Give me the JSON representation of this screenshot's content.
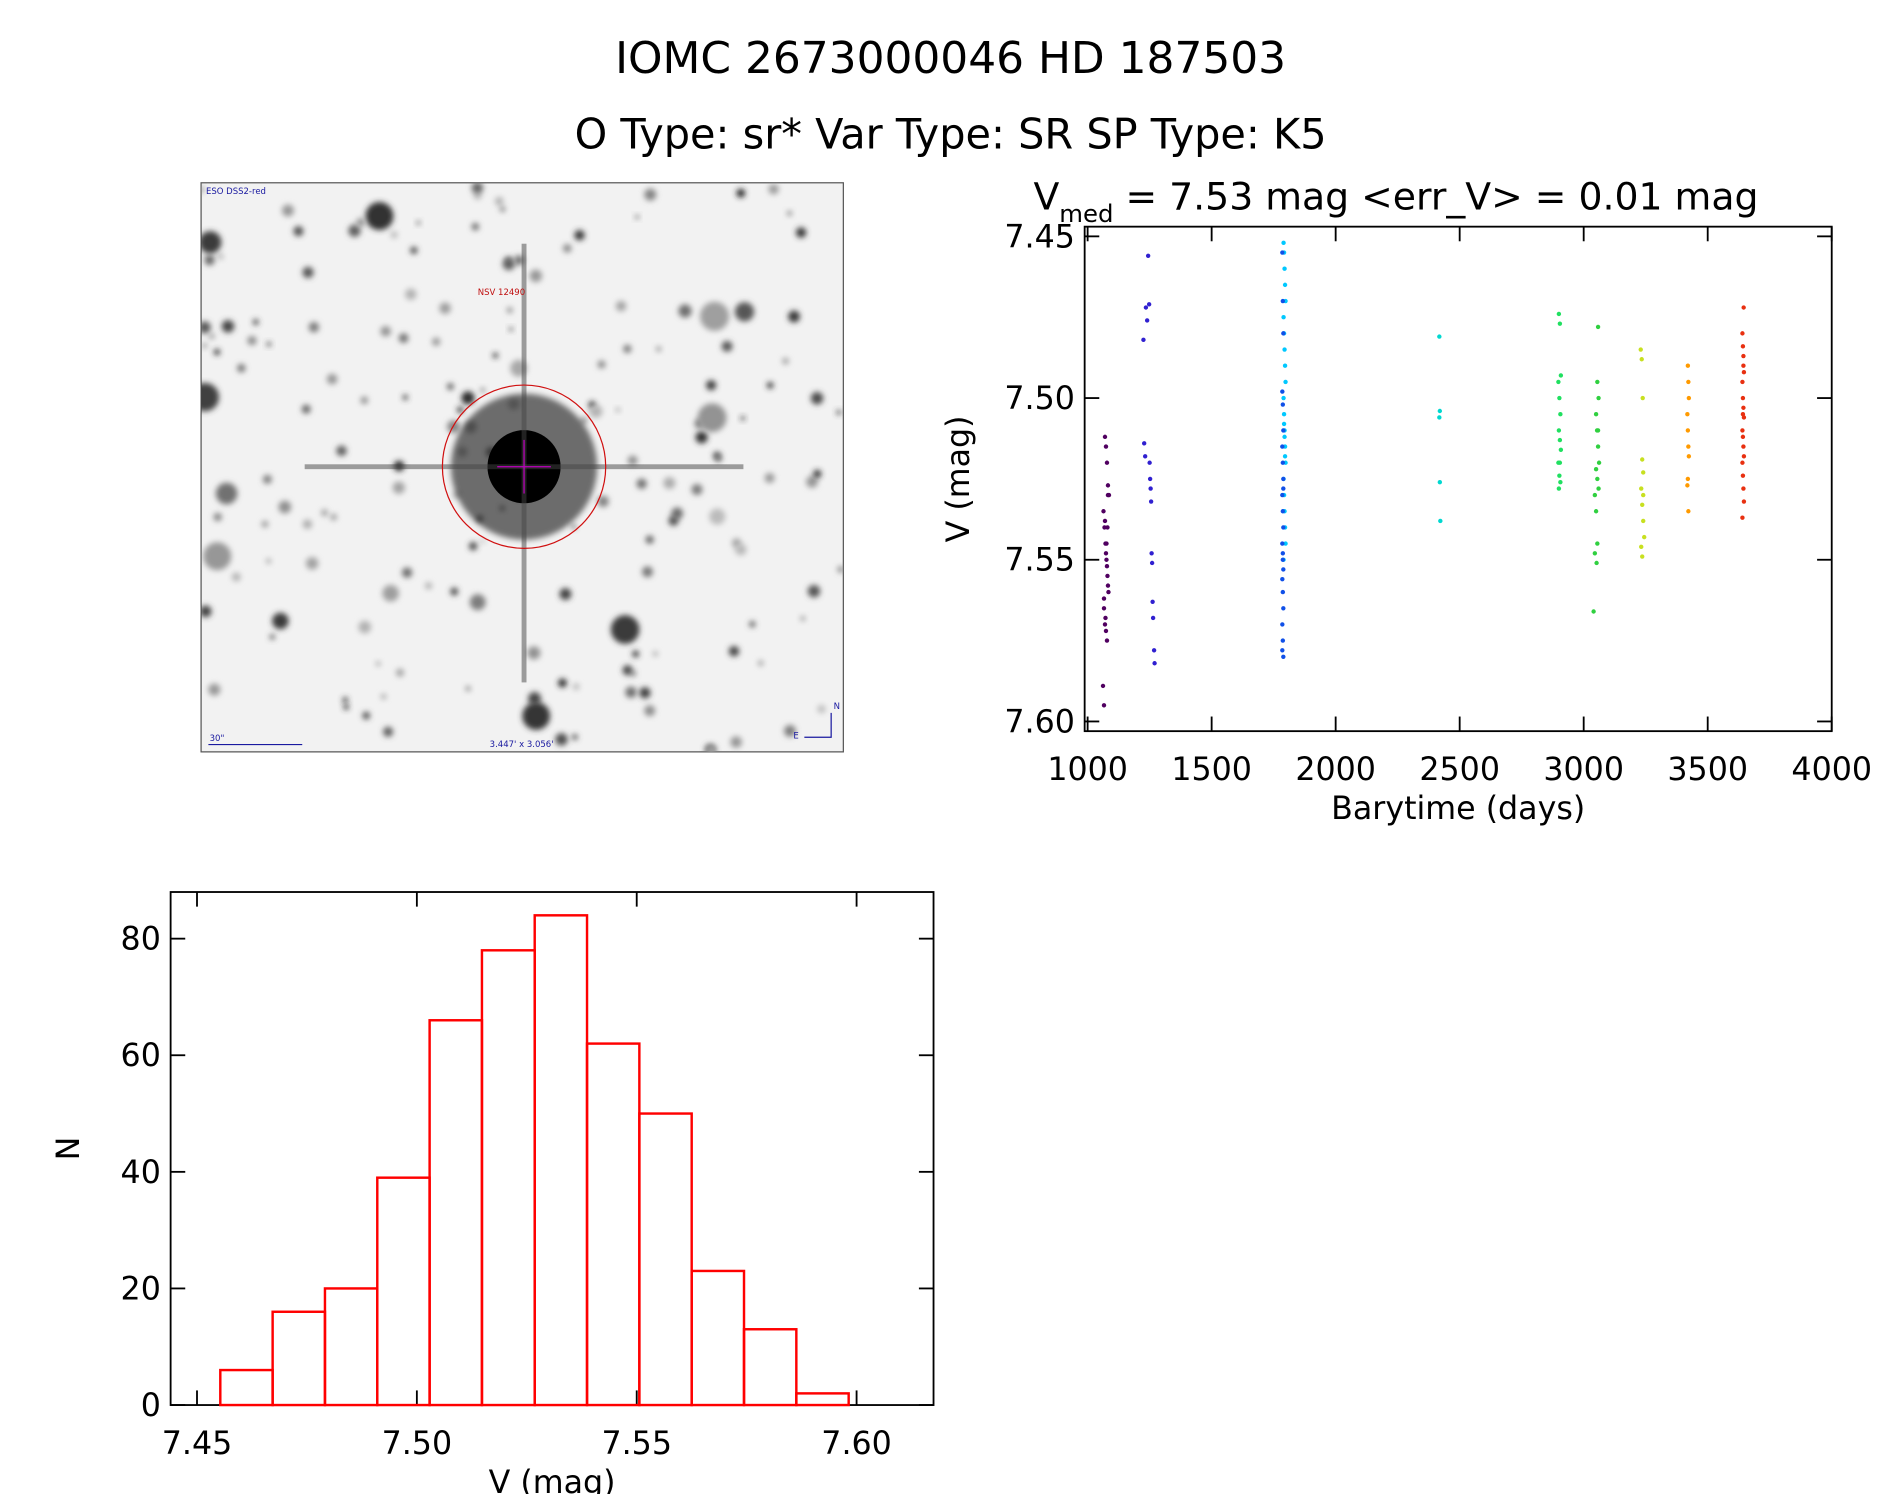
{
  "title": "IOMC 2673000046   HD 187503",
  "subtitle": "O Type: sr*  Var Type: SR  SP Type: K5",
  "finder": {
    "survey": "ESO DSS2-red",
    "target": "NSV 12490",
    "scale": "30\"",
    "size": "3.447' x 3.056'",
    "east": "E",
    "north": "N"
  },
  "chart_data": [
    {
      "type": "scatter",
      "title": "V",
      "title_subscript": "med",
      "title_rest": " = 7.53 mag <err_V> = 0.01 mag",
      "xlabel": "Barytime (days)",
      "ylabel": "V (mag)",
      "xlim": [
        988,
        4000
      ],
      "xticks": [
        1000,
        1500,
        2000,
        2500,
        3000,
        3500,
        4000
      ],
      "ylim": [
        7.603,
        7.447
      ],
      "yticks": [
        7.45,
        {
          "value": 7.5,
          "label": "7.50"
        },
        7.55,
        {
          "value": 7.6,
          "label": "7.60"
        }
      ],
      "grid": false,
      "series": [
        {
          "color": "#500060",
          "x": [
            1062,
            1066,
            1070,
            1074,
            1078,
            1082,
            1086,
            1064,
            1068,
            1072,
            1076,
            1080,
            1084,
            1066,
            1070,
            1074,
            1078,
            1082,
            1070,
            1074,
            1078,
            1082,
            1066,
            1072,
            1076,
            1080
          ],
          "values": [
            7.589,
            7.595,
            7.512,
            7.515,
            7.52,
            7.527,
            7.53,
            7.535,
            7.54,
            7.545,
            7.55,
            7.555,
            7.56,
            7.565,
            7.57,
            7.572,
            7.575,
            7.53,
            7.538,
            7.548,
            7.552,
            7.558,
            7.562,
            7.568,
            7.545,
            7.54
          ]
        },
        {
          "color": "#3020d0",
          "x": [
            1225,
            1235,
            1248,
            1228,
            1232,
            1250,
            1252,
            1254,
            1256,
            1258,
            1260,
            1262,
            1264,
            1268,
            1270,
            1240,
            1244
          ],
          "values": [
            7.482,
            7.472,
            7.471,
            7.514,
            7.518,
            7.52,
            7.525,
            7.528,
            7.532,
            7.548,
            7.551,
            7.563,
            7.568,
            7.578,
            7.582,
            7.476,
            7.456
          ]
        },
        {
          "color": "#00c8ff",
          "x": [
            1790,
            1792,
            1794,
            1796,
            1798,
            1790,
            1792,
            1794,
            1796,
            1798,
            1790,
            1792,
            1794,
            1796,
            1798,
            1790,
            1792,
            1794,
            1796,
            1798,
            1790,
            1792,
            1794,
            1796
          ],
          "values": [
            7.452,
            7.455,
            7.46,
            7.465,
            7.47,
            7.475,
            7.48,
            7.485,
            7.49,
            7.495,
            7.5,
            7.505,
            7.51,
            7.515,
            7.52,
            7.525,
            7.53,
            7.535,
            7.54,
            7.545,
            7.55,
            7.508,
            7.512,
            7.518
          ]
        },
        {
          "color": "#1050e8",
          "x": [
            1785,
            1787,
            1789,
            1785,
            1787,
            1789,
            1785,
            1787,
            1789,
            1785,
            1787,
            1789,
            1785,
            1787,
            1789,
            1785,
            1787,
            1789,
            1785,
            1787,
            1789,
            1785,
            1787,
            1789
          ],
          "values": [
            7.455,
            7.47,
            7.48,
            7.498,
            7.502,
            7.51,
            7.515,
            7.52,
            7.525,
            7.53,
            7.535,
            7.54,
            7.545,
            7.55,
            7.553,
            7.556,
            7.56,
            7.565,
            7.57,
            7.575,
            7.58,
            7.578,
            7.548,
            7.528
          ]
        },
        {
          "color": "#00d8d0",
          "x": [
            2418,
            2420,
            2418,
            2420,
            2422
          ],
          "values": [
            7.481,
            7.504,
            7.506,
            7.526,
            7.538
          ]
        },
        {
          "color": "#20e060",
          "x": [
            2900,
            2904,
            2908,
            2898,
            2902,
            2906,
            2900,
            2904,
            2908,
            2898,
            2902,
            2906,
            2900,
            2904
          ],
          "values": [
            7.474,
            7.477,
            7.493,
            7.495,
            7.5,
            7.505,
            7.51,
            7.513,
            7.516,
            7.52,
            7.524,
            7.526,
            7.528,
            7.52
          ]
        },
        {
          "color": "#30d040",
          "x": [
            3058,
            3055,
            3060,
            3050,
            3054,
            3058,
            3062,
            3050,
            3055,
            3060,
            3045,
            3050,
            3055,
            3045,
            3052,
            3040,
            3058
          ],
          "values": [
            7.478,
            7.495,
            7.5,
            7.505,
            7.51,
            7.515,
            7.52,
            7.522,
            7.525,
            7.528,
            7.53,
            7.535,
            7.545,
            7.548,
            7.551,
            7.566,
            7.51
          ]
        },
        {
          "color": "#c8e020",
          "x": [
            3230,
            3234,
            3238,
            3236,
            3240,
            3232,
            3236,
            3240,
            3244,
            3232,
            3236,
            3240
          ],
          "values": [
            7.485,
            7.488,
            7.5,
            7.519,
            7.523,
            7.528,
            7.533,
            7.538,
            7.543,
            7.546,
            7.549,
            7.53
          ]
        },
        {
          "color": "#ff9a00",
          "x": [
            3420,
            3422,
            3424,
            3418,
            3420,
            3422,
            3424,
            3420,
            3418,
            3422
          ],
          "values": [
            7.49,
            7.495,
            7.5,
            7.505,
            7.51,
            7.515,
            7.518,
            7.525,
            7.527,
            7.535
          ]
        },
        {
          "color": "#e83010",
          "x": [
            3645,
            3640,
            3642,
            3644,
            3646,
            3640,
            3642,
            3644,
            3646,
            3640,
            3642,
            3644,
            3646,
            3640,
            3642,
            3644,
            3646,
            3640,
            3642,
            3644
          ],
          "values": [
            7.472,
            7.48,
            7.484,
            7.49,
            7.492,
            7.495,
            7.5,
            7.503,
            7.506,
            7.51,
            7.512,
            7.515,
            7.518,
            7.52,
            7.524,
            7.528,
            7.532,
            7.537,
            7.505,
            7.487
          ]
        }
      ]
    },
    {
      "type": "histogram",
      "xlabel": "V (mag)",
      "ylabel": "N",
      "bins": [
        7.4553,
        7.4672,
        7.4791,
        7.491,
        7.5029,
        7.5148,
        7.5268,
        7.5387,
        7.5506,
        7.5625,
        7.5744,
        7.5863,
        7.5982
      ],
      "values": [
        6,
        16,
        20,
        39,
        66,
        78,
        84,
        62,
        50,
        23,
        13,
        2
      ],
      "color": "#ff0000",
      "xlim": [
        7.444,
        7.6175
      ],
      "xticks": [
        7.45,
        {
          "value": 7.5,
          "label": "7.50"
        },
        7.55,
        {
          "value": 7.6,
          "label": "7.60"
        }
      ],
      "ylim": [
        0,
        88
      ],
      "yticks": [
        0,
        20,
        40,
        60,
        80
      ],
      "grid": false
    }
  ]
}
